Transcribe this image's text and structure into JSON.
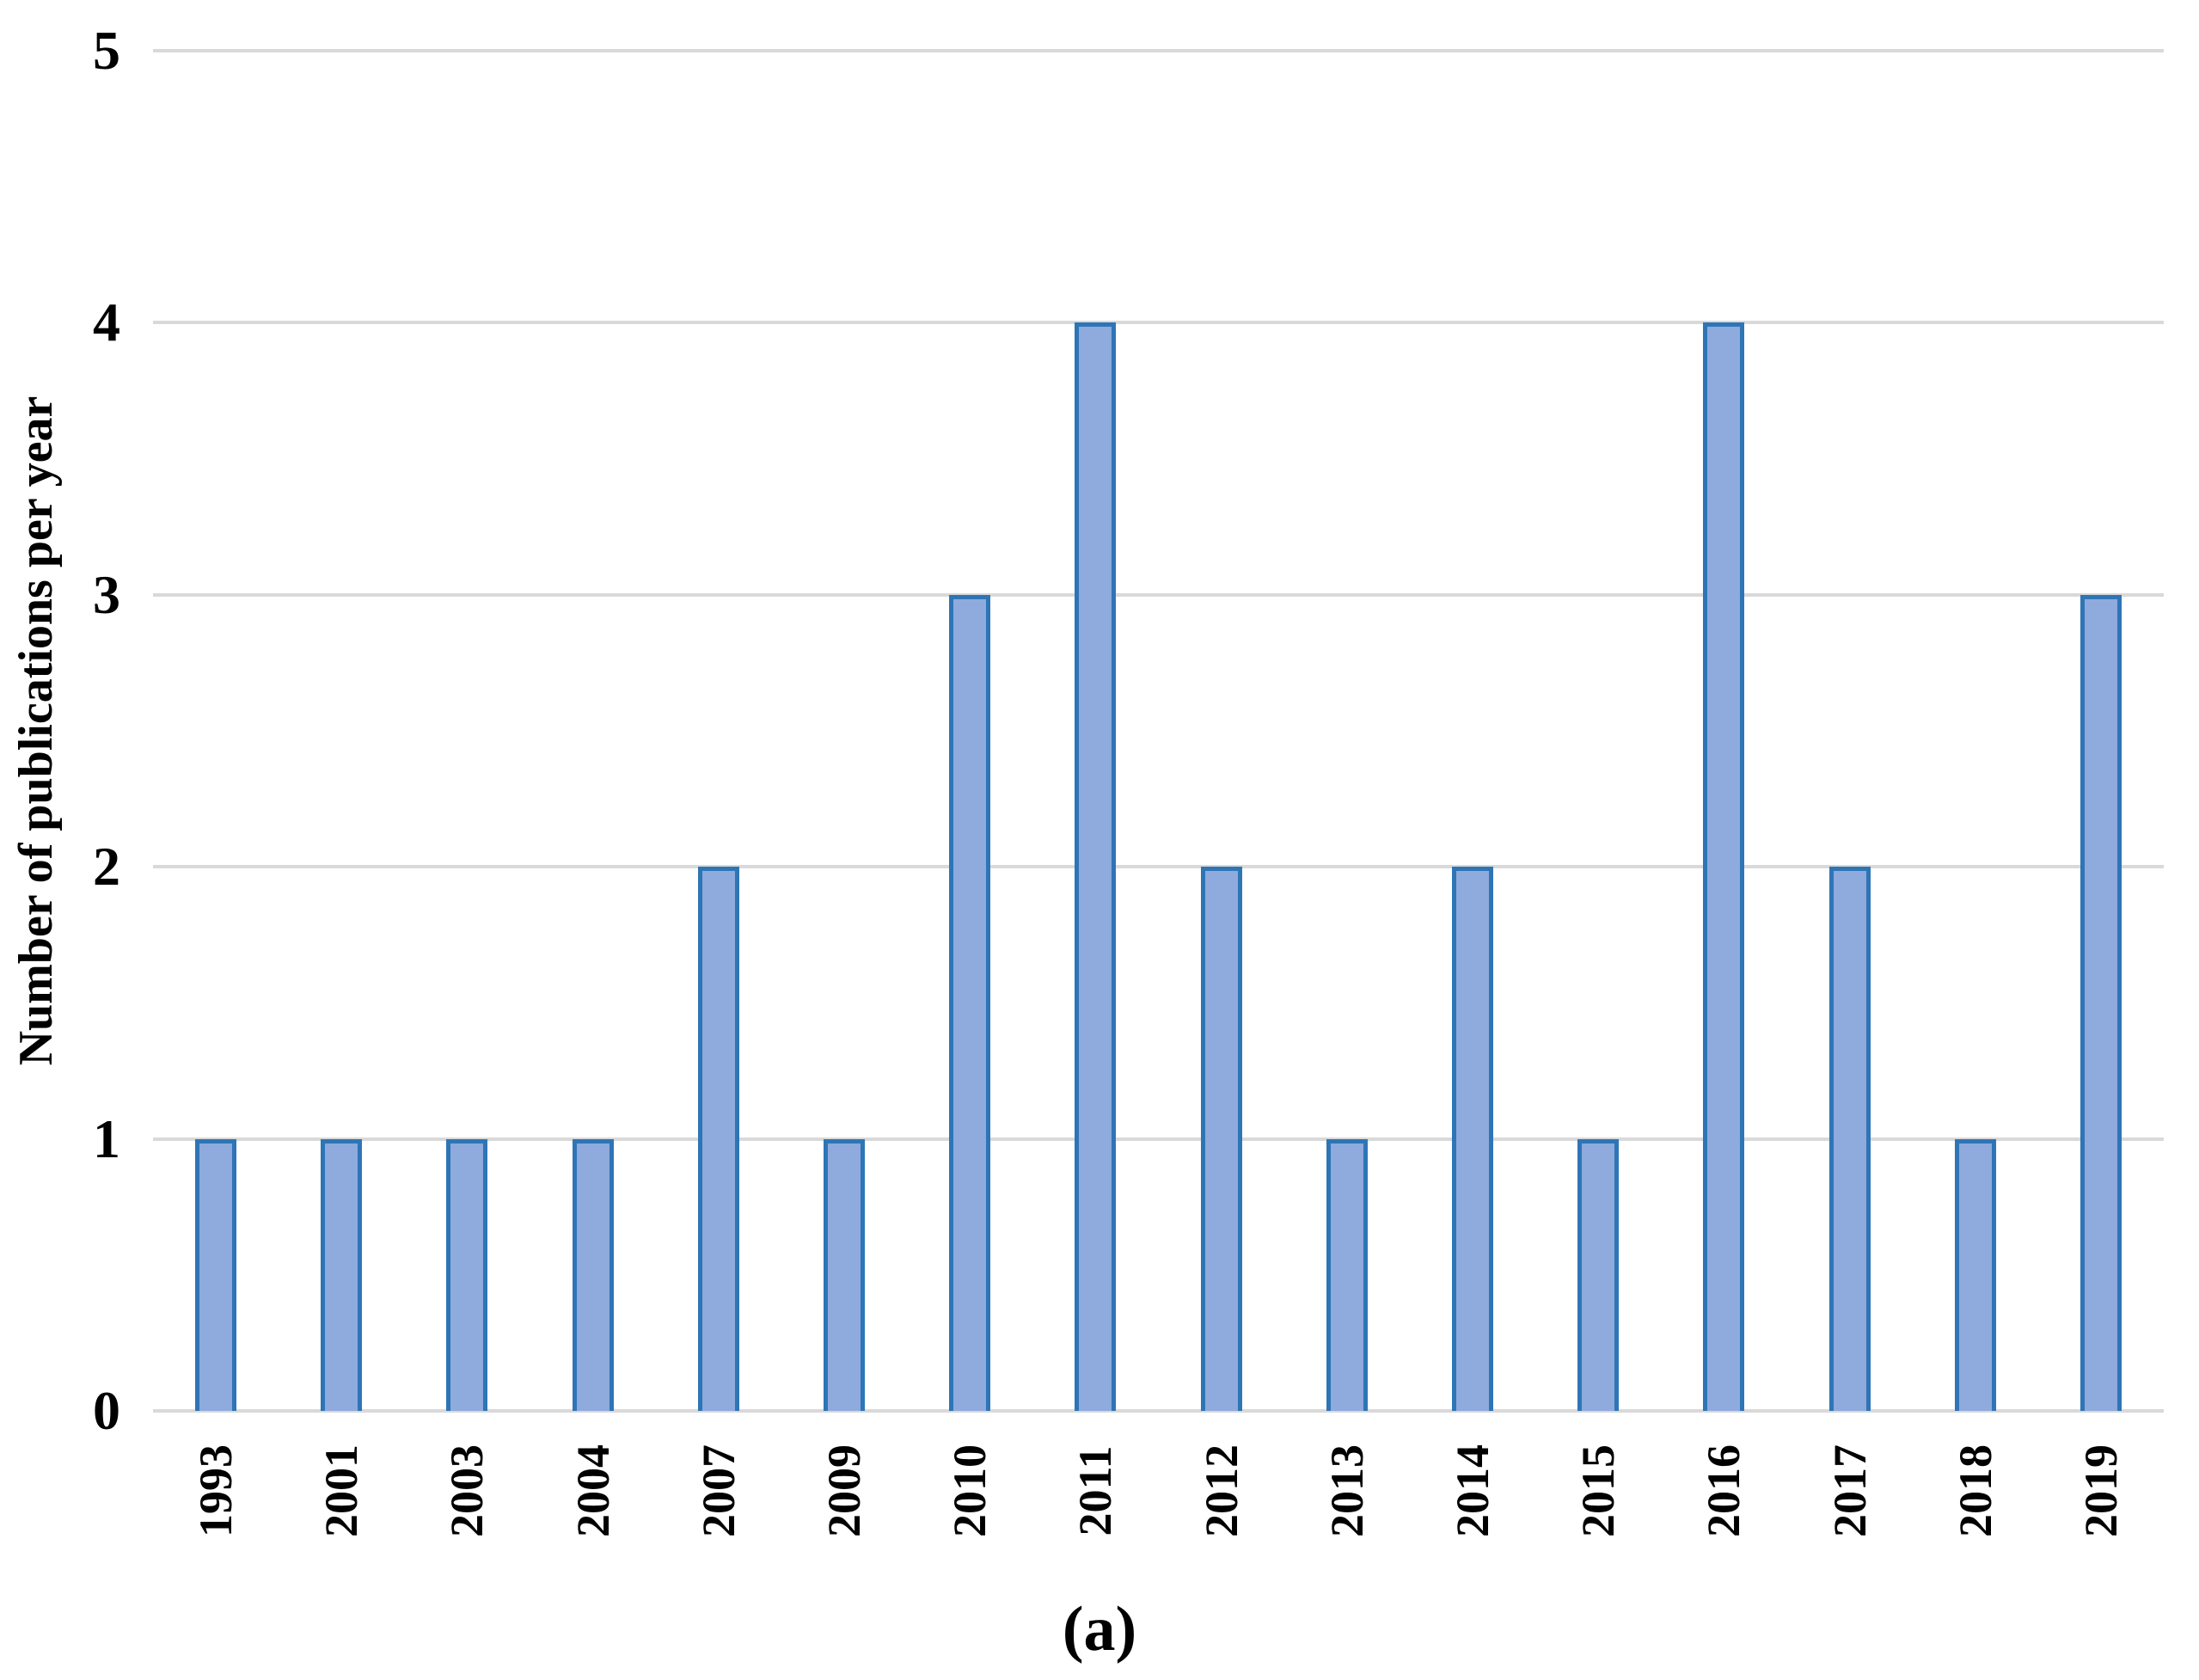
{
  "figure": {
    "caption": "(a)"
  },
  "chart_data": {
    "type": "bar",
    "title": "",
    "xlabel": "",
    "ylabel": "Number of publications per year",
    "categories": [
      "1993",
      "2001",
      "2003",
      "2004",
      "2007",
      "2009",
      "2010",
      "2011",
      "2012",
      "2013",
      "2014",
      "2015",
      "2016",
      "2017",
      "2018",
      "2019"
    ],
    "values": [
      1,
      1,
      1,
      1,
      2,
      1,
      3,
      4,
      2,
      1,
      2,
      1,
      4,
      2,
      1,
      3
    ],
    "ylim": [
      0,
      5
    ],
    "yticks": [
      0,
      1,
      2,
      3,
      4,
      5
    ],
    "grid": "horizontal",
    "legend": "none",
    "colors": {
      "bar_fill": "#8FAADC",
      "bar_border": "#2E75B6",
      "gridline": "#D9D9D9",
      "text": "#000000"
    }
  }
}
